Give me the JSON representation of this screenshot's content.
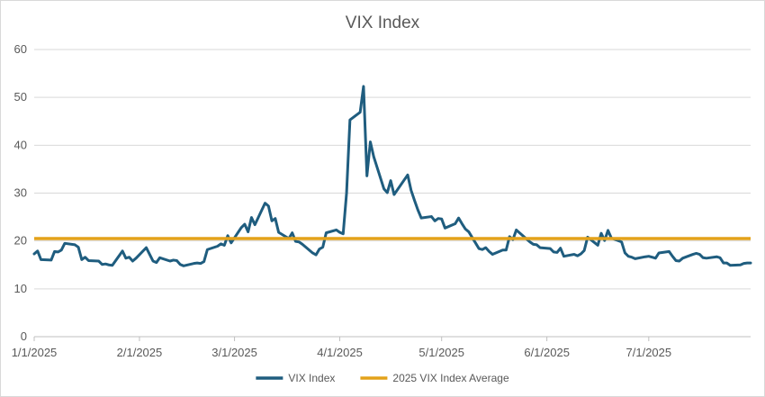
{
  "chart_data": {
    "type": "line",
    "title": "VIX Index",
    "xlabel": "",
    "ylabel": "",
    "ylim": [
      0,
      60
    ],
    "y_ticks": [
      "0",
      "10",
      "20",
      "30",
      "40",
      "50",
      "60"
    ],
    "x_range": [
      "2025-01-01",
      "2025-07-31"
    ],
    "x_ticks": [
      {
        "date": "2025-01-01",
        "label": "1/1/2025"
      },
      {
        "date": "2025-02-01",
        "label": "2/1/2025"
      },
      {
        "date": "2025-03-01",
        "label": "3/1/2025"
      },
      {
        "date": "2025-04-01",
        "label": "4/1/2025"
      },
      {
        "date": "2025-05-01",
        "label": "5/1/2025"
      },
      {
        "date": "2025-06-01",
        "label": "6/1/2025"
      },
      {
        "date": "2025-07-01",
        "label": "7/1/2025"
      }
    ],
    "grid": "horizontal",
    "legend_position": "bottom",
    "series": [
      {
        "name": "VIX Index",
        "color": "#1f5d7f",
        "points": [
          [
            "2025-01-01",
            17.3
          ],
          [
            "2025-01-02",
            17.9
          ],
          [
            "2025-01-03",
            16.1
          ],
          [
            "2025-01-06",
            16.0
          ],
          [
            "2025-01-07",
            17.8
          ],
          [
            "2025-01-08",
            17.7
          ],
          [
            "2025-01-09",
            18.1
          ],
          [
            "2025-01-10",
            19.5
          ],
          [
            "2025-01-13",
            19.2
          ],
          [
            "2025-01-14",
            18.7
          ],
          [
            "2025-01-15",
            16.1
          ],
          [
            "2025-01-16",
            16.6
          ],
          [
            "2025-01-17",
            15.9
          ],
          [
            "2025-01-20",
            15.8
          ],
          [
            "2025-01-21",
            15.1
          ],
          [
            "2025-01-22",
            15.2
          ],
          [
            "2025-01-23",
            15.0
          ],
          [
            "2025-01-24",
            14.9
          ],
          [
            "2025-01-27",
            17.9
          ],
          [
            "2025-01-28",
            16.4
          ],
          [
            "2025-01-29",
            16.6
          ],
          [
            "2025-01-30",
            15.8
          ],
          [
            "2025-01-31",
            16.4
          ],
          [
            "2025-02-03",
            18.6
          ],
          [
            "2025-02-04",
            17.2
          ],
          [
            "2025-02-05",
            15.8
          ],
          [
            "2025-02-06",
            15.5
          ],
          [
            "2025-02-07",
            16.5
          ],
          [
            "2025-02-10",
            15.8
          ],
          [
            "2025-02-11",
            16.0
          ],
          [
            "2025-02-12",
            15.9
          ],
          [
            "2025-02-13",
            15.1
          ],
          [
            "2025-02-14",
            14.8
          ],
          [
            "2025-02-17",
            15.3
          ],
          [
            "2025-02-18",
            15.4
          ],
          [
            "2025-02-19",
            15.3
          ],
          [
            "2025-02-20",
            15.7
          ],
          [
            "2025-02-21",
            18.2
          ],
          [
            "2025-02-24",
            18.9
          ],
          [
            "2025-02-25",
            19.4
          ],
          [
            "2025-02-26",
            19.1
          ],
          [
            "2025-02-27",
            21.1
          ],
          [
            "2025-02-28",
            19.6
          ],
          [
            "2025-03-03",
            22.8
          ],
          [
            "2025-03-04",
            23.5
          ],
          [
            "2025-03-05",
            21.9
          ],
          [
            "2025-03-06",
            24.9
          ],
          [
            "2025-03-07",
            23.4
          ],
          [
            "2025-03-10",
            27.9
          ],
          [
            "2025-03-11",
            27.3
          ],
          [
            "2025-03-12",
            24.2
          ],
          [
            "2025-03-13",
            24.7
          ],
          [
            "2025-03-14",
            21.8
          ],
          [
            "2025-03-17",
            20.5
          ],
          [
            "2025-03-18",
            21.7
          ],
          [
            "2025-03-19",
            19.9
          ],
          [
            "2025-03-20",
            19.8
          ],
          [
            "2025-03-21",
            19.3
          ],
          [
            "2025-03-24",
            17.5
          ],
          [
            "2025-03-25",
            17.1
          ],
          [
            "2025-03-26",
            18.3
          ],
          [
            "2025-03-27",
            18.7
          ],
          [
            "2025-03-28",
            21.7
          ],
          [
            "2025-03-31",
            22.3
          ],
          [
            "2025-04-01",
            21.8
          ],
          [
            "2025-04-02",
            21.5
          ],
          [
            "2025-04-03",
            30.0
          ],
          [
            "2025-04-04",
            45.3
          ],
          [
            "2025-04-07",
            46.9
          ],
          [
            "2025-04-08",
            52.3
          ],
          [
            "2025-04-09",
            33.6
          ],
          [
            "2025-04-10",
            40.7
          ],
          [
            "2025-04-11",
            37.6
          ],
          [
            "2025-04-14",
            30.9
          ],
          [
            "2025-04-15",
            30.1
          ],
          [
            "2025-04-16",
            32.6
          ],
          [
            "2025-04-17",
            29.7
          ],
          [
            "2025-04-21",
            33.8
          ],
          [
            "2025-04-22",
            30.6
          ],
          [
            "2025-04-23",
            28.5
          ],
          [
            "2025-04-24",
            26.5
          ],
          [
            "2025-04-25",
            24.8
          ],
          [
            "2025-04-28",
            25.1
          ],
          [
            "2025-04-29",
            24.2
          ],
          [
            "2025-04-30",
            24.7
          ],
          [
            "2025-05-01",
            24.6
          ],
          [
            "2025-05-02",
            22.7
          ],
          [
            "2025-05-05",
            23.6
          ],
          [
            "2025-05-06",
            24.8
          ],
          [
            "2025-05-07",
            23.6
          ],
          [
            "2025-05-08",
            22.5
          ],
          [
            "2025-05-09",
            21.9
          ],
          [
            "2025-05-12",
            18.4
          ],
          [
            "2025-05-13",
            18.2
          ],
          [
            "2025-05-14",
            18.6
          ],
          [
            "2025-05-15",
            17.8
          ],
          [
            "2025-05-16",
            17.2
          ],
          [
            "2025-05-19",
            18.1
          ],
          [
            "2025-05-20",
            18.1
          ],
          [
            "2025-05-21",
            20.9
          ],
          [
            "2025-05-22",
            20.3
          ],
          [
            "2025-05-23",
            22.3
          ],
          [
            "2025-05-27",
            19.8
          ],
          [
            "2025-05-28",
            19.3
          ],
          [
            "2025-05-29",
            19.2
          ],
          [
            "2025-05-30",
            18.6
          ],
          [
            "2025-06-02",
            18.4
          ],
          [
            "2025-06-03",
            17.7
          ],
          [
            "2025-06-04",
            17.6
          ],
          [
            "2025-06-05",
            18.5
          ],
          [
            "2025-06-06",
            16.8
          ],
          [
            "2025-06-09",
            17.2
          ],
          [
            "2025-06-10",
            16.9
          ],
          [
            "2025-06-11",
            17.3
          ],
          [
            "2025-06-12",
            18.0
          ],
          [
            "2025-06-13",
            20.8
          ],
          [
            "2025-06-16",
            19.1
          ],
          [
            "2025-06-17",
            21.6
          ],
          [
            "2025-06-18",
            20.1
          ],
          [
            "2025-06-19",
            22.2
          ],
          [
            "2025-06-20",
            20.6
          ],
          [
            "2025-06-23",
            19.8
          ],
          [
            "2025-06-24",
            17.5
          ],
          [
            "2025-06-25",
            16.8
          ],
          [
            "2025-06-26",
            16.6
          ],
          [
            "2025-06-27",
            16.3
          ],
          [
            "2025-06-30",
            16.7
          ],
          [
            "2025-07-01",
            16.8
          ],
          [
            "2025-07-02",
            16.6
          ],
          [
            "2025-07-03",
            16.4
          ],
          [
            "2025-07-04",
            17.5
          ],
          [
            "2025-07-07",
            17.8
          ],
          [
            "2025-07-08",
            16.8
          ],
          [
            "2025-07-09",
            15.9
          ],
          [
            "2025-07-10",
            15.8
          ],
          [
            "2025-07-11",
            16.4
          ],
          [
            "2025-07-14",
            17.2
          ],
          [
            "2025-07-15",
            17.4
          ],
          [
            "2025-07-16",
            17.2
          ],
          [
            "2025-07-17",
            16.5
          ],
          [
            "2025-07-18",
            16.4
          ],
          [
            "2025-07-21",
            16.7
          ],
          [
            "2025-07-22",
            16.5
          ],
          [
            "2025-07-23",
            15.4
          ],
          [
            "2025-07-24",
            15.4
          ],
          [
            "2025-07-25",
            14.9
          ],
          [
            "2025-07-28",
            15.0
          ],
          [
            "2025-07-29",
            15.3
          ],
          [
            "2025-07-30",
            15.4
          ],
          [
            "2025-07-31",
            15.4
          ]
        ]
      },
      {
        "name": "2025 VIX Index Average",
        "color": "#e3a21a",
        "constant": 20.5
      }
    ]
  }
}
